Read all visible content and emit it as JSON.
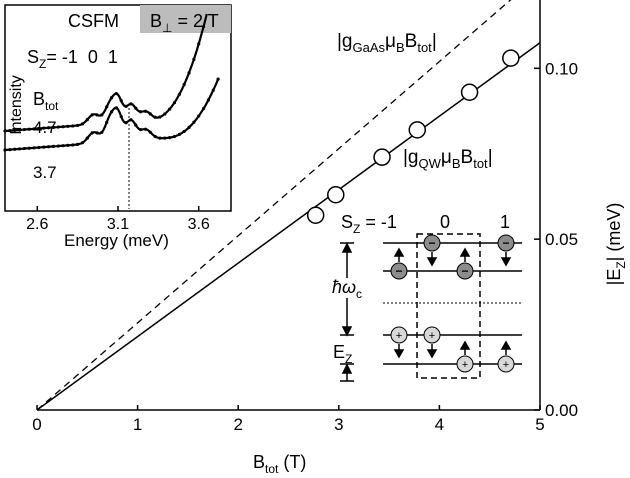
{
  "chart_data": [
    {
      "type": "scatter",
      "xlabel": {
        "main": "B",
        "sub": "tot",
        "unit": " (T)"
      },
      "ylabel": {
        "main": "|E",
        "sub": "Z",
        "unit": "| (meV)"
      },
      "xlim": [
        0,
        5
      ],
      "ylim": [
        0,
        0.12
      ],
      "x_ticks": [
        "0",
        "1",
        "2",
        "3",
        "4",
        "5"
      ],
      "y_ticks": [
        "0.00",
        "0.05",
        "0.10"
      ],
      "y_axis_side": "right",
      "series": [
        {
          "name_main": "|g",
          "name_sub": "GaAs",
          "name_mid": "μ",
          "name_sub2": "B",
          "name_tail": "B",
          "name_sub3": "tot",
          "name_end": "|",
          "style": "dashed-line",
          "x": [
            0,
            5
          ],
          "y": [
            0,
            0.1275
          ]
        },
        {
          "name_main": "|g",
          "name_sub": "QW",
          "name_mid": "μ",
          "name_sub2": "B",
          "name_tail": "B",
          "name_sub3": "tot",
          "name_end": "|",
          "style": "solid-line",
          "x": [
            0,
            5
          ],
          "y": [
            0,
            0.1075
          ]
        },
        {
          "style": "open-circles",
          "x": [
            2.77,
            2.97,
            3.43,
            3.78,
            4.3,
            4.71
          ],
          "y": [
            0.057,
            0.063,
            0.074,
            0.082,
            0.093,
            0.103
          ]
        }
      ]
    },
    {
      "type": "line",
      "inset": true,
      "title": "CSFM",
      "badge": {
        "main": "B",
        "sub": "⊥",
        "rest": " = 2 T"
      },
      "xlabel": "Energy (meV)",
      "ylabel": "Intensity",
      "xlim": [
        2.4,
        3.8
      ],
      "x_ticks": [
        "2.6",
        "3.1",
        "3.6"
      ],
      "sz_label": {
        "main": "S",
        "sub": "Z",
        "values": "= -1  0  1"
      },
      "btot_label": {
        "main": "B",
        "sub": "tot"
      },
      "marker_x": 3.1,
      "series": [
        {
          "name": "4.7"
        },
        {
          "name": "3.7"
        }
      ]
    },
    {
      "type": "diagram",
      "inset": true,
      "sz_label": {
        "main": "S",
        "sub": "Z",
        "rest": " = -1"
      },
      "columns": [
        "0",
        "1"
      ],
      "hbar_omega": {
        "main": "ħω",
        "sub": "c"
      },
      "ez": {
        "main": "E",
        "sub": "Z"
      },
      "electron_symbol": "−",
      "hole_symbol": "+"
    }
  ]
}
